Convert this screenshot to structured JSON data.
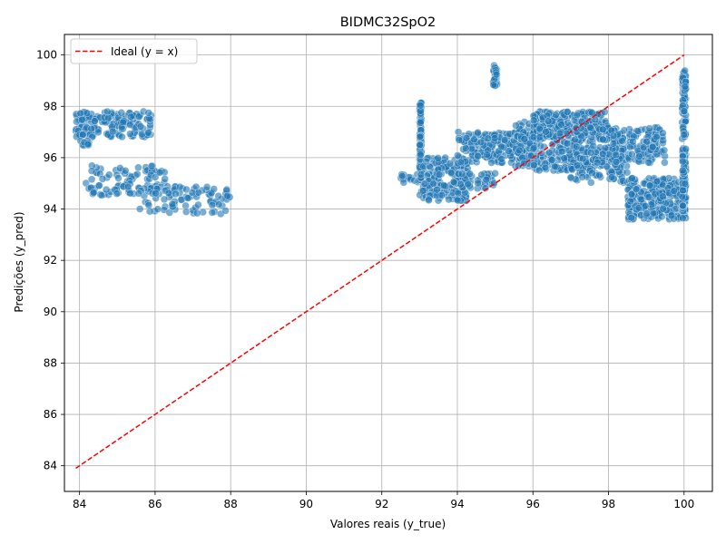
{
  "chart_data": {
    "type": "scatter",
    "title": "BIDMC32SpO2",
    "xlabel": "Valores reais (y_true)",
    "ylabel": "Predições (y_pred)",
    "xlim": [
      83.6,
      100.75
    ],
    "ylim": [
      83.0,
      100.8
    ],
    "xticks": [
      84,
      86,
      88,
      90,
      92,
      94,
      96,
      98,
      100
    ],
    "yticks": [
      84,
      86,
      88,
      90,
      92,
      94,
      96,
      98,
      100
    ],
    "grid": true,
    "legend_position": "top-left",
    "colors": {
      "points": "#1f77b4",
      "points_edge": "#ffffff",
      "ideal_line": "#ff0000",
      "grid": "#b0b0b0"
    },
    "series": [
      {
        "name": "",
        "kind": "scatter",
        "clusters": [
          {
            "x": [
              83.9,
              85.9
            ],
            "y": [
              96.8,
              97.8
            ],
            "n": 160
          },
          {
            "x": [
              84.0,
              84.3
            ],
            "y": [
              96.3,
              96.9
            ],
            "n": 12
          },
          {
            "x": [
              84.1,
              86.3
            ],
            "y": [
              94.5,
              95.7
            ],
            "n": 90
          },
          {
            "x": [
              85.5,
              88.0
            ],
            "y": [
              93.8,
              94.9
            ],
            "n": 90
          },
          {
            "x": [
              92.5,
              93.0
            ],
            "y": [
              95.0,
              95.4
            ],
            "n": 14
          },
          {
            "x": [
              93.0,
              93.05
            ],
            "y": [
              95.5,
              98.2
            ],
            "n": 70
          },
          {
            "x": [
              93.0,
              94.3
            ],
            "y": [
              94.3,
              96.0
            ],
            "n": 180
          },
          {
            "x": [
              93.9,
              95.0
            ],
            "y": [
              94.8,
              95.4
            ],
            "n": 40
          },
          {
            "x": [
              94.0,
              96.0
            ],
            "y": [
              95.8,
              97.0
            ],
            "n": 220
          },
          {
            "x": [
              94.95,
              95.05
            ],
            "y": [
              98.8,
              99.6
            ],
            "n": 30
          },
          {
            "x": [
              95.5,
              97.5
            ],
            "y": [
              95.5,
              97.4
            ],
            "n": 260
          },
          {
            "x": [
              96.0,
              98.0
            ],
            "y": [
              96.8,
              97.8
            ],
            "n": 180
          },
          {
            "x": [
              97.0,
              98.5
            ],
            "y": [
              95.0,
              96.0
            ],
            "n": 80
          },
          {
            "x": [
              97.5,
              99.5
            ],
            "y": [
              95.8,
              97.2
            ],
            "n": 200
          },
          {
            "x": [
              98.5,
              100.0
            ],
            "y": [
              93.6,
              95.2
            ],
            "n": 260
          },
          {
            "x": [
              99.95,
              100.05
            ],
            "y": [
              93.6,
              99.4
            ],
            "n": 150
          }
        ]
      },
      {
        "name": "Ideal (y = x)",
        "kind": "line",
        "style": "dashed",
        "x": [
          83.9,
          100.0
        ],
        "y": [
          83.9,
          100.0
        ]
      }
    ]
  }
}
